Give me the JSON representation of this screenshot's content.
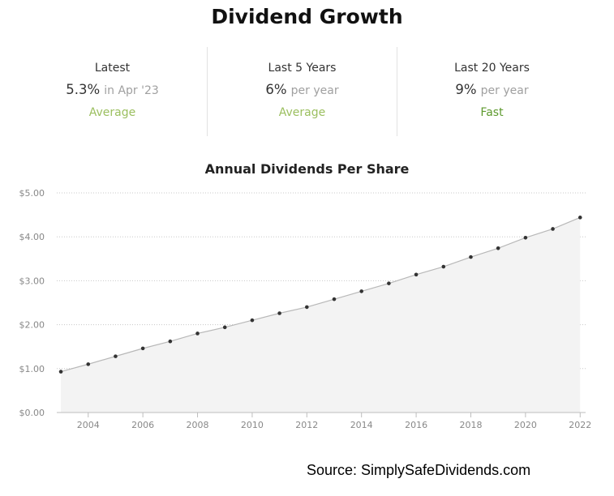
{
  "title": "Dividend Growth",
  "stats": [
    {
      "label": "Latest",
      "value": "5.3%",
      "suffix": "in Apr '23",
      "rating": "Average"
    },
    {
      "label": "Last 5 Years",
      "value": "6%",
      "suffix": "per year",
      "rating": "Average"
    },
    {
      "label": "Last 20 Years",
      "value": "9%",
      "suffix": "per year",
      "rating": "Fast"
    }
  ],
  "colors": {
    "average": "#9bbf5f",
    "fast": "#5e9a2e",
    "line": "#b8b8b8",
    "area": "#f3f3f3",
    "point": "#333333"
  },
  "chart_data": {
    "type": "area",
    "title": "Annual Dividends Per Share",
    "xlabel": "",
    "ylabel": "",
    "x": [
      2003,
      2004,
      2005,
      2006,
      2007,
      2008,
      2009,
      2010,
      2011,
      2012,
      2013,
      2014,
      2015,
      2016,
      2017,
      2018,
      2019,
      2020,
      2021,
      2022
    ],
    "values": [
      0.93,
      1.1,
      1.28,
      1.46,
      1.62,
      1.8,
      1.94,
      2.1,
      2.26,
      2.4,
      2.58,
      2.76,
      2.94,
      3.14,
      3.32,
      3.54,
      3.74,
      3.98,
      4.18,
      4.44
    ],
    "xticks": [
      "2004",
      "2006",
      "2008",
      "2010",
      "2012",
      "2014",
      "2016",
      "2018",
      "2020",
      "2022"
    ],
    "yticks": [
      "$0.00",
      "$1.00",
      "$2.00",
      "$3.00",
      "$4.00",
      "$5.00"
    ],
    "ylim": [
      0,
      5
    ],
    "xlim": [
      2002.85,
      2022.2
    ],
    "grid": true
  },
  "source": "Source: SimplySafeDividends.com"
}
